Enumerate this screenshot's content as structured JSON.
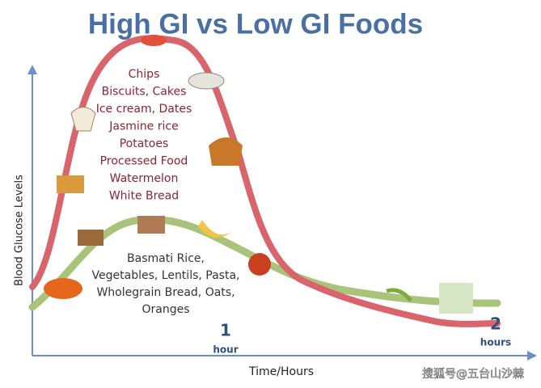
{
  "title": "High GI vs Low GI Foods",
  "high_gi": {
    "items": [
      "Chips",
      "Biscuits, Cakes",
      "Ice cream, Dates",
      "Jasmine rice",
      "Potatoes",
      "Processed Food",
      "Watermelon",
      "White Bread"
    ]
  },
  "low_gi": {
    "items": [
      "Basmati Rice,",
      "Vegetables, Lentils, Pasta,",
      "Wholegrain Bread, Oats,",
      "Oranges"
    ]
  },
  "axes": {
    "y_label": "Blood Glucose Levels",
    "x_label": "Time/Hours",
    "ticks": [
      {
        "number": "1",
        "unit": "hour"
      },
      {
        "number": "2",
        "unit": "hours"
      }
    ]
  },
  "watermark": "搜狐号@五台山沙棘"
}
